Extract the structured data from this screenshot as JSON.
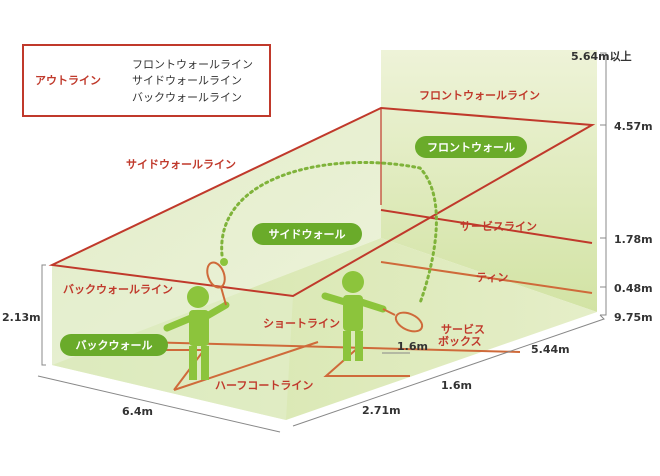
{
  "legend": {
    "title": "アウトライン",
    "items": [
      "フロントウォールライン",
      "サイドウォールライン",
      "バックウォールライン"
    ]
  },
  "walls": {
    "front": "フロントウォール",
    "side": "サイドウォール",
    "back": "バックウォール"
  },
  "lines": {
    "front_wall": "フロントウォールライン",
    "side_wall": "サイドウォールライン",
    "back_wall": "バックウォールライン",
    "service": "サービスライン",
    "tin": "ティン",
    "short": "ショートライン",
    "half_court": "ハーフコートライン",
    "service_box_1": "サービス",
    "service_box_2": "ボックス"
  },
  "heights": {
    "ceiling": "5.64m以上",
    "front_out": "4.57m",
    "service": "1.78m",
    "tin": "0.48m",
    "back": "2.13m"
  },
  "lengths": {
    "court_length": "9.75m",
    "front_to_short": "5.44m",
    "box_depth": "1.6m",
    "box_width": "1.6m",
    "short_to_back": "2.71m",
    "width": "6.4m"
  },
  "colors": {
    "out_line": "#c0392b",
    "court_line": "#cf6a3a",
    "pill": "#6aab2a",
    "player": "#8cc43c"
  }
}
